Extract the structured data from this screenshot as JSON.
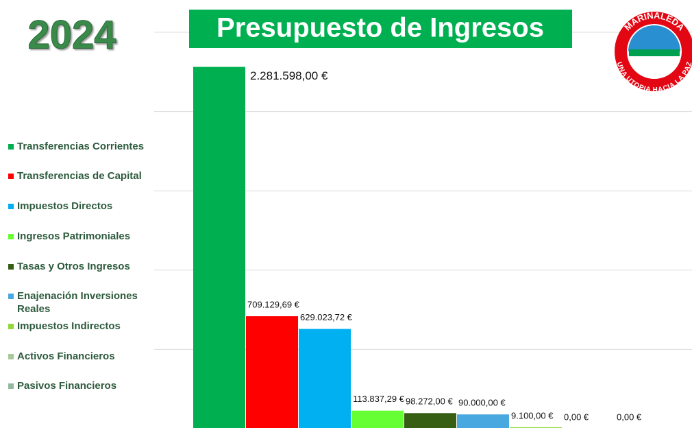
{
  "chart_data": {
    "type": "bar",
    "title": "Presupuesto de Ingresos",
    "year": "2024",
    "logo": {
      "top": "MARINALEDA",
      "bottom": "UNA UTOPIA HACIA LA PAZ"
    },
    "categories": [
      "Transferencias Corrientes",
      "Transferencias de Capital",
      "Impuestos Directos",
      "Ingresos Patrimoniales",
      "Tasas y Otros Ingresos",
      "Enajenación Inversiones Reales",
      "Impuestos Indirectos",
      "Activos Financieros",
      "Pasivos Financieros"
    ],
    "values": [
      2281598,
      709129.69,
      629023.72,
      113837.29,
      98272,
      90000,
      9100,
      0,
      0
    ],
    "value_labels": [
      "2.281.598,00 €",
      "709.129,69 €",
      "629.023,72 €",
      "113.837,29 €",
      "98.272,00 €",
      "90.000,00 €",
      "9.100,00 €",
      "0,00 €",
      "0,00 €"
    ],
    "colors": [
      "#00b050",
      "#ff0000",
      "#00b0f0",
      "#66ff33",
      "#375f14",
      "#4aa8e0",
      "#92d83a",
      "#a6c99a",
      "#92b8a0"
    ],
    "ylim": [
      0,
      2500000
    ],
    "yticks": [
      0,
      500000,
      1000000,
      1500000,
      2000000,
      2500000
    ],
    "grid": true
  }
}
